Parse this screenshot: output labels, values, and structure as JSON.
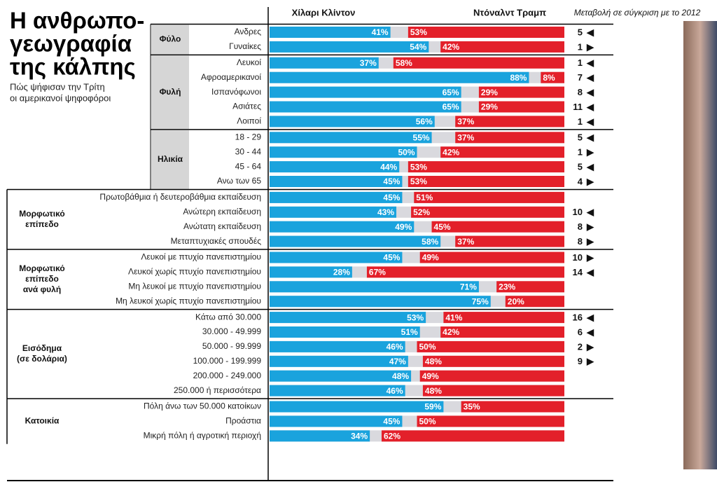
{
  "chart_data": {
    "type": "diverging_bar",
    "title_lines": [
      "Η ανθρωπο-",
      "γεωγραφία",
      "της κάλπης"
    ],
    "subtitle_lines": [
      "Πώς ψήφισαν την Τρίτη",
      "οι αμερικανοί ψηφοφόροι"
    ],
    "change_title": "Μεταβολή σε σύγκριση με το 2012",
    "xlim": [
      0,
      100
    ],
    "series": [
      {
        "name": "Χίλαρι Κλίντον",
        "color": "#1aa3dd"
      },
      {
        "name": "Ντόναλντ Τραμπ",
        "color": "#e3202a"
      }
    ],
    "groups": [
      {
        "name": [
          "Φύλο"
        ],
        "rows": [
          {
            "label": "Ανδρες",
            "values": [
              41,
              53
            ],
            "value_labels": [
              "41%",
              "53%"
            ],
            "change": 5,
            "arrow": "◀"
          },
          {
            "label": "Γυναίκες",
            "values": [
              54,
              42
            ],
            "value_labels": [
              "54%",
              "42%"
            ],
            "change": 1,
            "arrow": "▶"
          }
        ]
      },
      {
        "name": [
          "Φυλή"
        ],
        "rows": [
          {
            "label": "Λευκοί",
            "values": [
              37,
              58
            ],
            "value_labels": [
              "37%",
              "58%"
            ],
            "change": 1,
            "arrow": "◀"
          },
          {
            "label": "Αφροαμερικανοί",
            "values": [
              88,
              8
            ],
            "value_labels": [
              "88%",
              "8%"
            ],
            "change": 7,
            "arrow": "◀"
          },
          {
            "label": "Ισπανόφωνοι",
            "values": [
              65,
              29
            ],
            "value_labels": [
              "65%",
              "29%"
            ],
            "change": 8,
            "arrow": "◀"
          },
          {
            "label": "Ασιάτες",
            "values": [
              65,
              29
            ],
            "value_labels": [
              "65%",
              "29%"
            ],
            "change": 11,
            "arrow": "◀"
          },
          {
            "label": "Λοιποί",
            "values": [
              56,
              37
            ],
            "value_labels": [
              "56%",
              "37%"
            ],
            "change": 1,
            "arrow": "◀"
          }
        ]
      },
      {
        "name": [
          "Ηλικία"
        ],
        "rows": [
          {
            "label": "18 - 29",
            "values": [
              55,
              37
            ],
            "value_labels": [
              "55%",
              "37%"
            ],
            "change": 5,
            "arrow": "◀"
          },
          {
            "label": "30 - 44",
            "values": [
              50,
              42
            ],
            "value_labels": [
              "50%",
              "42%"
            ],
            "change": 1,
            "arrow": "▶"
          },
          {
            "label": "45 - 64",
            "values": [
              44,
              53
            ],
            "value_labels": [
              "44%",
              "53%"
            ],
            "change": 5,
            "arrow": "◀"
          },
          {
            "label": "Ανω των 65",
            "values": [
              45,
              53
            ],
            "value_labels": [
              "45%",
              "53%"
            ],
            "change": 4,
            "arrow": "▶"
          }
        ]
      },
      {
        "name": [
          "Μορφωτικό",
          "επίπεδο"
        ],
        "rows": [
          {
            "label": "Πρωτοβάθμια ή δευτεροβάθμια εκπαίδευση",
            "values": [
              45,
              51
            ],
            "value_labels": [
              "45%",
              "51%"
            ]
          },
          {
            "label": "Ανώτερη εκπαίδευση",
            "values": [
              43,
              52
            ],
            "value_labels": [
              "43%",
              "52%"
            ],
            "change": 10,
            "arrow": "◀"
          },
          {
            "label": "Ανώτατη εκπαίδευση",
            "values": [
              49,
              45
            ],
            "value_labels": [
              "49%",
              "45%"
            ],
            "change": 8,
            "arrow": "▶"
          },
          {
            "label": "Μεταπτυχιακές σπουδές",
            "values": [
              58,
              37
            ],
            "value_labels": [
              "58%",
              "37%"
            ],
            "change": 8,
            "arrow": "▶"
          }
        ]
      },
      {
        "name": [
          "Μορφωτικό",
          "επίπεδο",
          "ανά φυλή"
        ],
        "rows": [
          {
            "label": "Λευκοί με πτυχίο πανεπιστημίου",
            "values": [
              45,
              49
            ],
            "value_labels": [
              "45%",
              "49%"
            ],
            "change": 10,
            "arrow": "▶"
          },
          {
            "label": "Λευκοί χωρίς πτυχίο πανεπιστημίου",
            "values": [
              28,
              67
            ],
            "value_labels": [
              "28%",
              "67%"
            ],
            "change": 14,
            "arrow": "◀"
          },
          {
            "label": "Μη λευκοί με πτυχίο πανεπιστημίου",
            "values": [
              71,
              23
            ],
            "value_labels": [
              "71%",
              "23%"
            ]
          },
          {
            "label": "Μη λευκοί χωρίς πτυχίο πανεπιστημίου",
            "values": [
              75,
              20
            ],
            "value_labels": [
              "75%",
              "20%"
            ]
          }
        ]
      },
      {
        "name": [
          "Εισόδημα",
          "(σε δολάρια)"
        ],
        "rows": [
          {
            "label": "Κάτω από 30.000",
            "values": [
              53,
              41
            ],
            "value_labels": [
              "53%",
              "41%"
            ],
            "change": 16,
            "arrow": "◀"
          },
          {
            "label": "30.000 - 49.999",
            "values": [
              51,
              42
            ],
            "value_labels": [
              "51%",
              "42%"
            ],
            "change": 6,
            "arrow": "◀"
          },
          {
            "label": "50.000 - 99.999",
            "values": [
              46,
              50
            ],
            "value_labels": [
              "46%",
              "50%"
            ],
            "change": 2,
            "arrow": "▶"
          },
          {
            "label": "100.000 - 199.999",
            "values": [
              47,
              48
            ],
            "value_labels": [
              "47%",
              "48%"
            ],
            "change": 9,
            "arrow": "▶"
          },
          {
            "label": "200.000 - 249.000",
            "values": [
              48,
              49
            ],
            "value_labels": [
              "48%",
              "49%"
            ]
          },
          {
            "label": "250.000 ή περισσότερα",
            "values": [
              46,
              48
            ],
            "value_labels": [
              "46%",
              "48%"
            ]
          }
        ]
      },
      {
        "name": [
          "Κατοικία"
        ],
        "rows": [
          {
            "label": "Πόλη άνω των 50.000 κατοίκων",
            "values": [
              59,
              35
            ],
            "value_labels": [
              "59%",
              "35%"
            ]
          },
          {
            "label": "Προάστια",
            "values": [
              45,
              50
            ],
            "value_labels": [
              "45%",
              "50%"
            ]
          },
          {
            "label": "Μικρή πόλη ή αγροτική περιοχή",
            "values": [
              34,
              62
            ],
            "value_labels": [
              "34%",
              "62%"
            ]
          }
        ]
      }
    ]
  }
}
